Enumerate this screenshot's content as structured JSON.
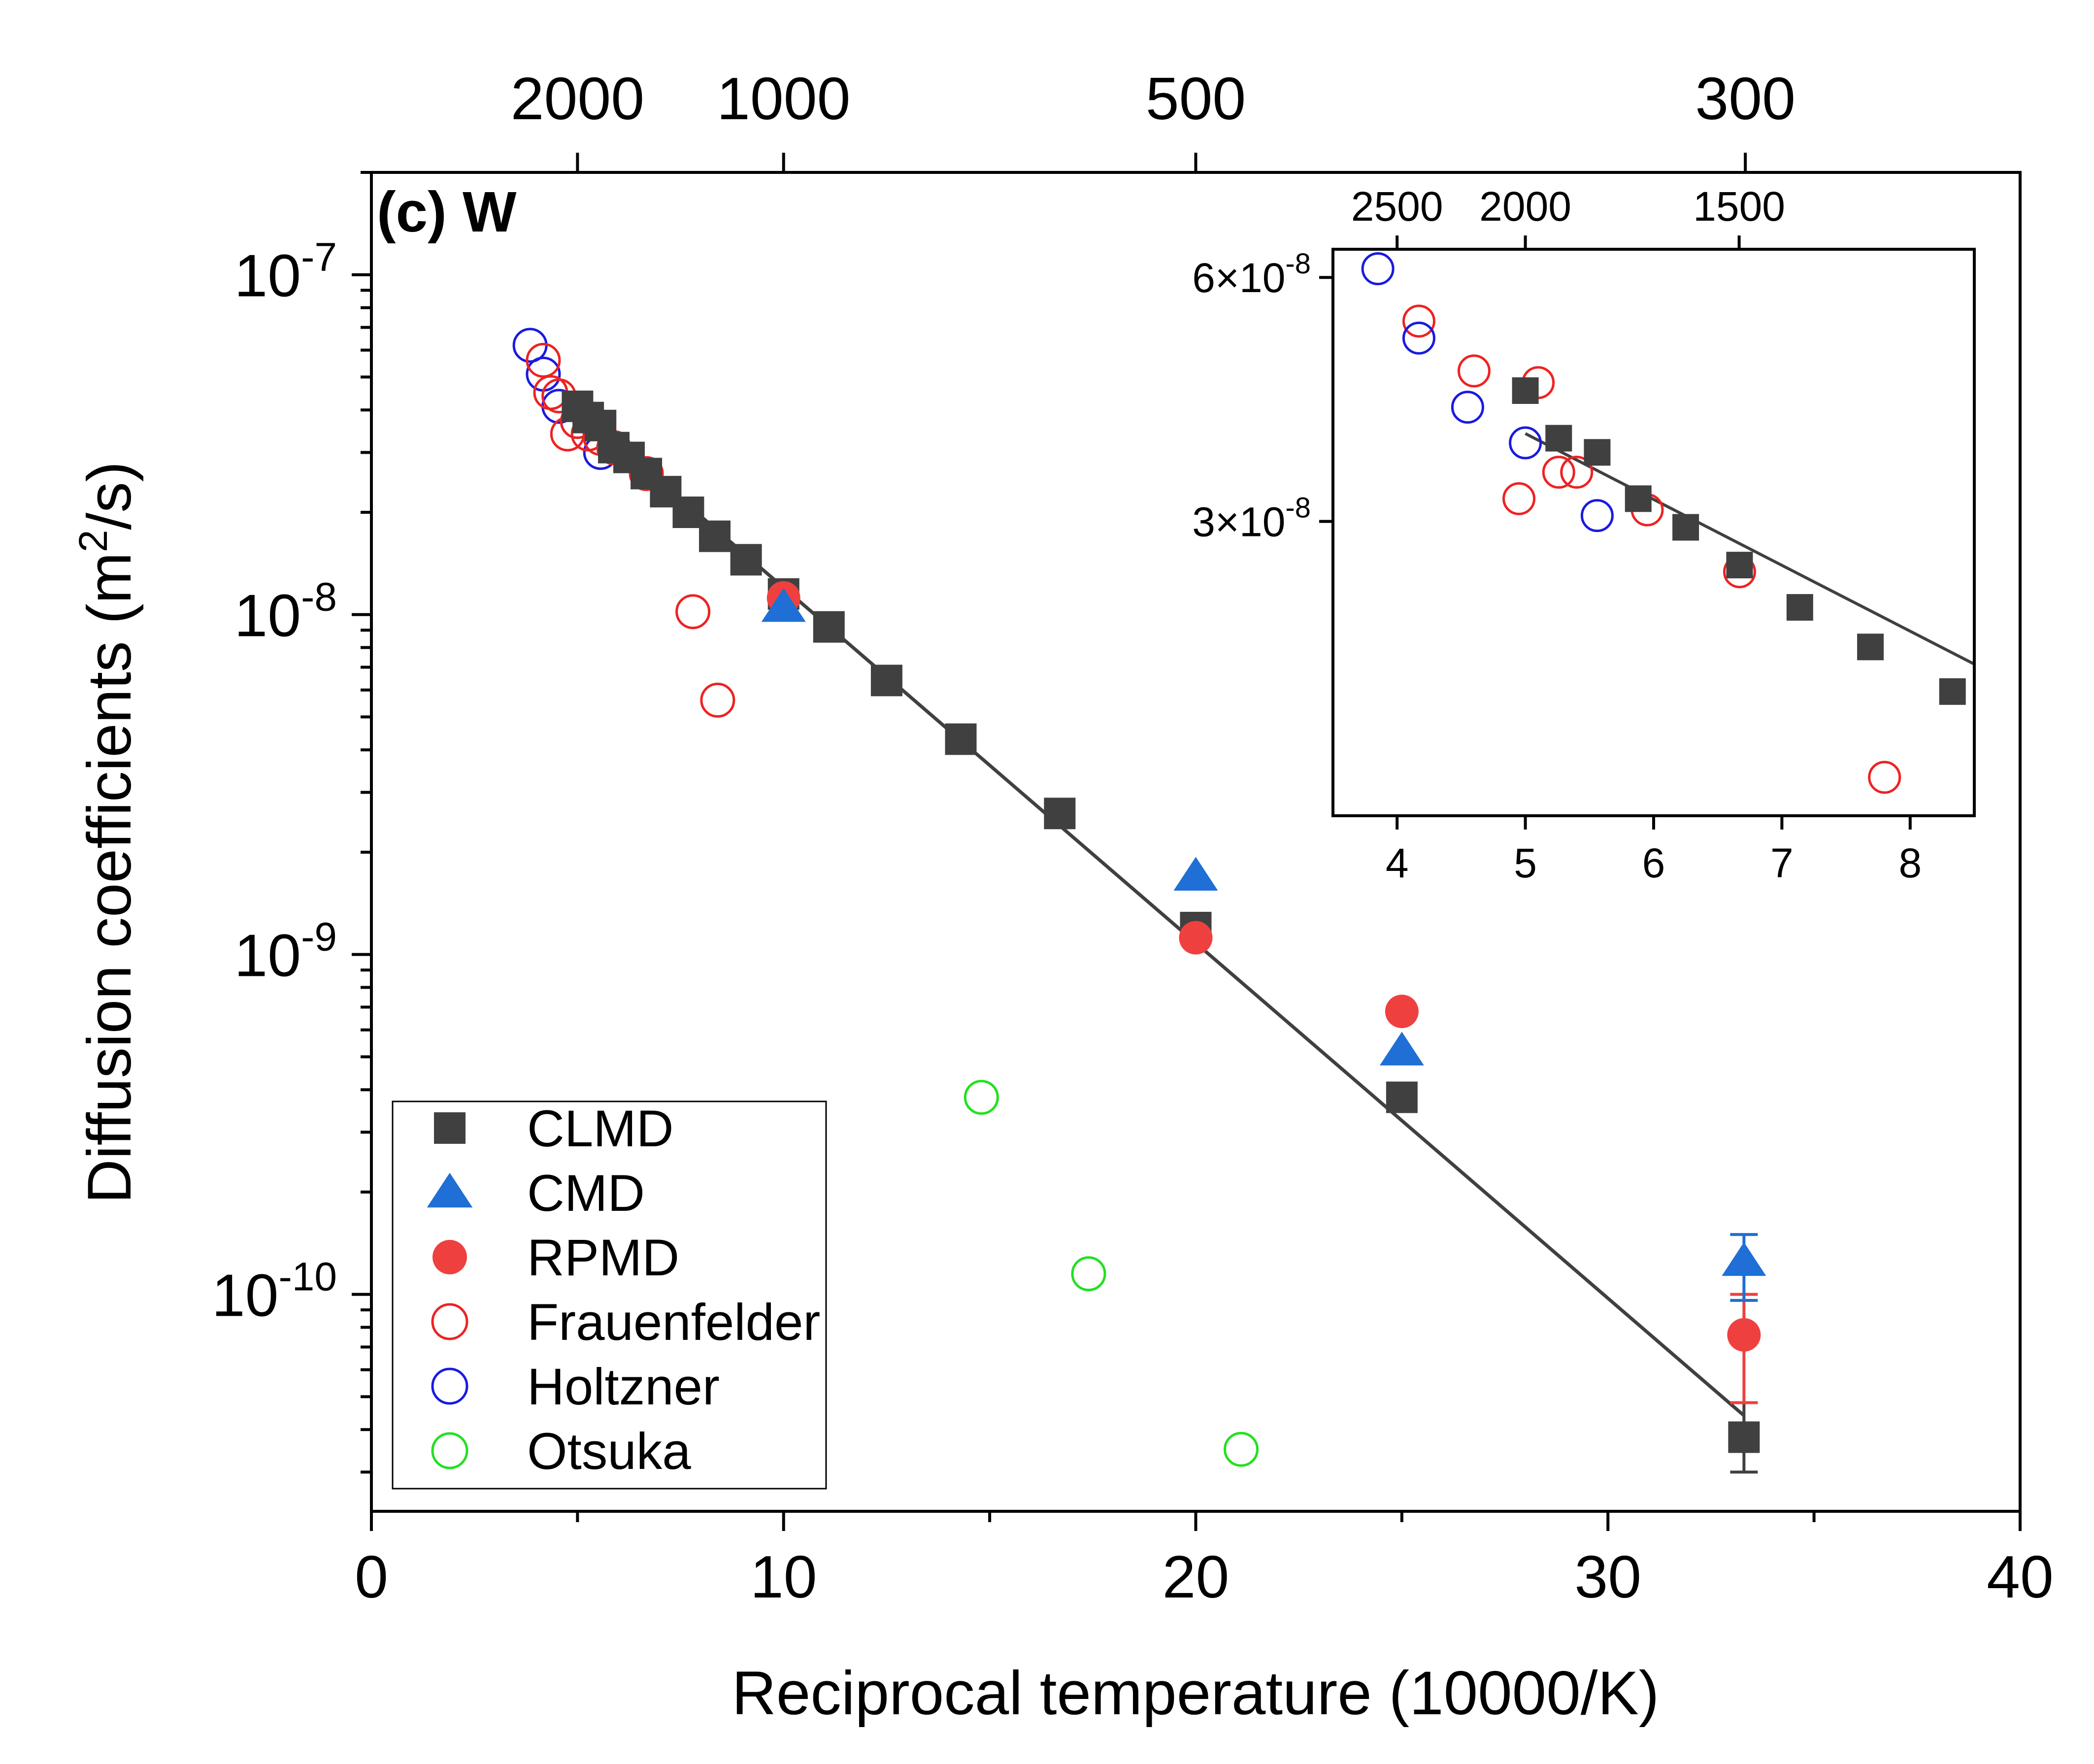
{
  "chart_data": {
    "type": "scatter",
    "panel_label": "(c) W",
    "xlabel": "Reciprocal temperature (10000/K)",
    "ylabel": "Diffusion coefficients (m2/s)",
    "ylabel_base": "Diffusion coefficients (m",
    "ylabel_sup": "2",
    "ylabel_tail": "/s)",
    "xlim": [
      0,
      40
    ],
    "ylim": [
      2.3e-11,
      2e-07
    ],
    "yscale": "log",
    "x_ticks": [
      {
        "value": 0,
        "label": "0"
      },
      {
        "value": 10,
        "label": "10"
      },
      {
        "value": 20,
        "label": "20"
      },
      {
        "value": 30,
        "label": "30"
      },
      {
        "value": 40,
        "label": "40"
      }
    ],
    "y_ticks": [
      {
        "value": 1e-10,
        "base": "10",
        "exp": "-10"
      },
      {
        "value": 1e-09,
        "base": "10",
        "exp": "-9"
      },
      {
        "value": 1e-08,
        "base": "10",
        "exp": "-8"
      },
      {
        "value": 1e-07,
        "base": "10",
        "exp": "-7"
      }
    ],
    "top_axis_ticks": [
      {
        "value": 2000,
        "label": "2000"
      },
      {
        "value": 1000,
        "label": "1000"
      },
      {
        "value": 500,
        "label": "500"
      },
      {
        "value": 300,
        "label": "300"
      }
    ],
    "legend_position": "bottom-left",
    "fit_line": {
      "x": [
        5,
        33.3
      ],
      "y": [
        4e-08,
        4.4e-11
      ]
    },
    "series": [
      {
        "name": "CLMD",
        "marker": "square",
        "filled": true,
        "color": "#404040",
        "points": [
          [
            5.0,
            4.1e-08
          ],
          [
            5.26,
            3.8e-08
          ],
          [
            5.56,
            3.6e-08
          ],
          [
            5.88,
            3.1e-08
          ],
          [
            6.25,
            2.9e-08
          ],
          [
            6.67,
            2.6e-08
          ],
          [
            7.14,
            2.3e-08
          ],
          [
            7.69,
            2e-08
          ],
          [
            8.33,
            1.7e-08
          ],
          [
            9.09,
            1.45e-08
          ],
          [
            10.0,
            1.15e-08
          ],
          [
            11.1,
            9.2e-09
          ],
          [
            12.5,
            6.4e-09
          ],
          [
            14.3,
            4.3e-09
          ],
          [
            16.7,
            2.6e-09
          ],
          [
            20.0,
            1.2e-09
          ],
          [
            25.0,
            3.8e-10
          ],
          [
            33.3,
            3.8e-11
          ]
        ],
        "err": [
          null,
          null,
          null,
          null,
          null,
          null,
          null,
          null,
          null,
          null,
          null,
          null,
          null,
          null,
          null,
          null,
          null,
          [
            3e-11,
            4.8e-11
          ]
        ]
      },
      {
        "name": "CMD",
        "marker": "triangle",
        "filled": true,
        "color": "#1f6fd6",
        "points": [
          [
            10.0,
            1.05e-08
          ],
          [
            20.0,
            1.7e-09
          ],
          [
            25.0,
            5.2e-10
          ],
          [
            33.3,
            1.25e-10
          ]
        ],
        "err": [
          null,
          null,
          null,
          [
            9.6e-11,
            1.5e-10
          ]
        ]
      },
      {
        "name": "RPMD",
        "marker": "circle",
        "filled": true,
        "color": "#ef4040",
        "points": [
          [
            10.0,
            1.12e-08
          ],
          [
            20.0,
            1.12e-09
          ],
          [
            25.0,
            6.8e-10
          ],
          [
            33.3,
            7.6e-11
          ]
        ],
        "err": [
          null,
          null,
          null,
          [
            4.8e-11,
            1e-10
          ]
        ]
      },
      {
        "name": "Frauenfelder",
        "marker": "circle",
        "filled": false,
        "color": "#ee2222",
        "points": [
          [
            4.17,
            5.6e-08
          ],
          [
            4.35,
            4.5e-08
          ],
          [
            4.55,
            4.4e-08
          ],
          [
            4.76,
            3.4e-08
          ],
          [
            5.0,
            3.7e-08
          ],
          [
            5.26,
            3.4e-08
          ],
          [
            5.56,
            3.3e-08
          ],
          [
            5.88,
            3.1e-08
          ],
          [
            6.67,
            2.6e-08
          ],
          [
            7.8,
            1.02e-08
          ],
          [
            8.4,
            5.6e-09
          ]
        ]
      },
      {
        "name": "Holtzner",
        "marker": "circle",
        "filled": false,
        "color": "#1a1ae0",
        "points": [
          [
            3.85,
            6.2e-08
          ],
          [
            4.17,
            5.1e-08
          ],
          [
            4.55,
            4.1e-08
          ],
          [
            5.0,
            3.7e-08
          ],
          [
            5.56,
            3e-08
          ]
        ]
      },
      {
        "name": "Otsuka",
        "marker": "circle",
        "filled": false,
        "color": "#22e022",
        "points": [
          [
            14.8,
            3.8e-10
          ],
          [
            17.4,
            1.15e-10
          ],
          [
            21.1,
            3.5e-11
          ]
        ]
      }
    ],
    "inset": {
      "xlim": [
        3.5,
        8.5
      ],
      "ylim": [
        1.3e-08,
        6.5e-08
      ],
      "yscale": "log",
      "x_ticks": [
        {
          "value": 4,
          "label": "4"
        },
        {
          "value": 5,
          "label": "5"
        },
        {
          "value": 6,
          "label": "6"
        },
        {
          "value": 7,
          "label": "7"
        },
        {
          "value": 8,
          "label": "8"
        }
      ],
      "y_ticks": [
        {
          "value": 3e-08,
          "base": "3×10",
          "exp": "-8"
        },
        {
          "value": 6e-08,
          "base": "6×10",
          "exp": "-8"
        }
      ],
      "top_axis_ticks": [
        {
          "value": 2500,
          "label": "2500"
        },
        {
          "value": 2000,
          "label": "2000"
        },
        {
          "value": 1500,
          "label": "1500"
        }
      ],
      "fit_line": {
        "x": [
          5.0,
          8.5
        ],
        "y": [
          3.85e-08,
          2e-08
        ]
      },
      "series": [
        {
          "name": "CLMD",
          "marker": "square",
          "filled": true,
          "color": "#404040",
          "points": [
            [
              5.0,
              4.35e-08
            ],
            [
              5.26,
              3.8e-08
            ],
            [
              5.56,
              3.65e-08
            ],
            [
              5.88,
              3.2e-08
            ],
            [
              6.25,
              2.95e-08
            ],
            [
              6.67,
              2.65e-08
            ],
            [
              7.14,
              2.35e-08
            ],
            [
              7.69,
              2.1e-08
            ],
            [
              8.33,
              1.85e-08
            ]
          ]
        },
        {
          "name": "Frauenfelder",
          "marker": "circle",
          "filled": false,
          "color": "#ee2222",
          "points": [
            [
              4.17,
              5.3e-08
            ],
            [
              4.6,
              4.6e-08
            ],
            [
              4.95,
              3.2e-08
            ],
            [
              5.1,
              4.45e-08
            ],
            [
              5.26,
              3.45e-08
            ],
            [
              5.4,
              3.45e-08
            ],
            [
              5.95,
              3.1e-08
            ],
            [
              6.67,
              2.6e-08
            ],
            [
              7.8,
              1.45e-08
            ]
          ]
        },
        {
          "name": "Holtzner",
          "marker": "circle",
          "filled": false,
          "color": "#1a1ae0",
          "points": [
            [
              3.85,
              6.15e-08
            ],
            [
              4.17,
              5.05e-08
            ],
            [
              4.55,
              4.15e-08
            ],
            [
              5.0,
              3.75e-08
            ],
            [
              5.56,
              3.05e-08
            ]
          ]
        }
      ]
    }
  }
}
